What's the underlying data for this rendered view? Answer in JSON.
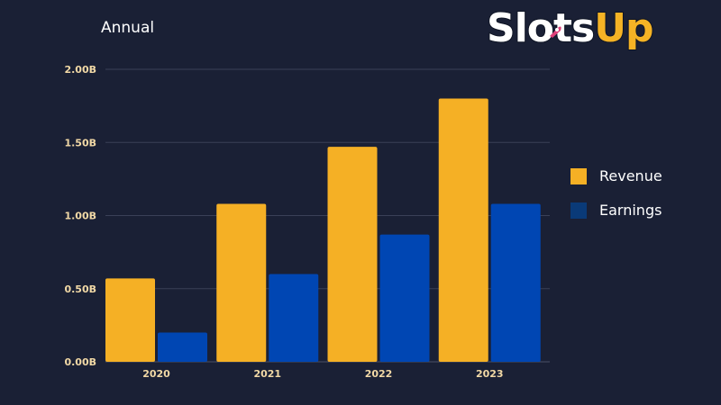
{
  "header": {
    "title": "Annual"
  },
  "logo": {
    "text_white": "Slots",
    "text_yellow": "Up"
  },
  "icons": {
    "logo_mark": "rocket-icon"
  },
  "colors": {
    "background": "#1a2035",
    "revenue": "#f5b025",
    "earnings": "#0046b3",
    "tick_label": "#f2d9a6",
    "grid": "#3a4057"
  },
  "legend": {
    "position": "right",
    "items": [
      {
        "label": "Revenue",
        "color": "#f5b025"
      },
      {
        "label": "Earnings",
        "color": "#0046b3"
      }
    ]
  },
  "chart_data": {
    "type": "bar",
    "title": "Annual",
    "categories": [
      "2020",
      "2021",
      "2022",
      "2023"
    ],
    "series": [
      {
        "name": "Revenue",
        "values": [
          0.57,
          1.08,
          1.47,
          1.8
        ]
      },
      {
        "name": "Earnings",
        "values": [
          0.2,
          0.6,
          0.87,
          1.08
        ]
      }
    ],
    "ylim": [
      0,
      2.0
    ],
    "yticks": [
      0,
      0.5,
      1.0,
      1.5,
      2.0
    ],
    "ytick_labels": [
      "0.00B",
      "0.50B",
      "1.00B",
      "1.50B",
      "2.00B"
    ],
    "xlabel": "",
    "ylabel": "",
    "grid": true
  }
}
